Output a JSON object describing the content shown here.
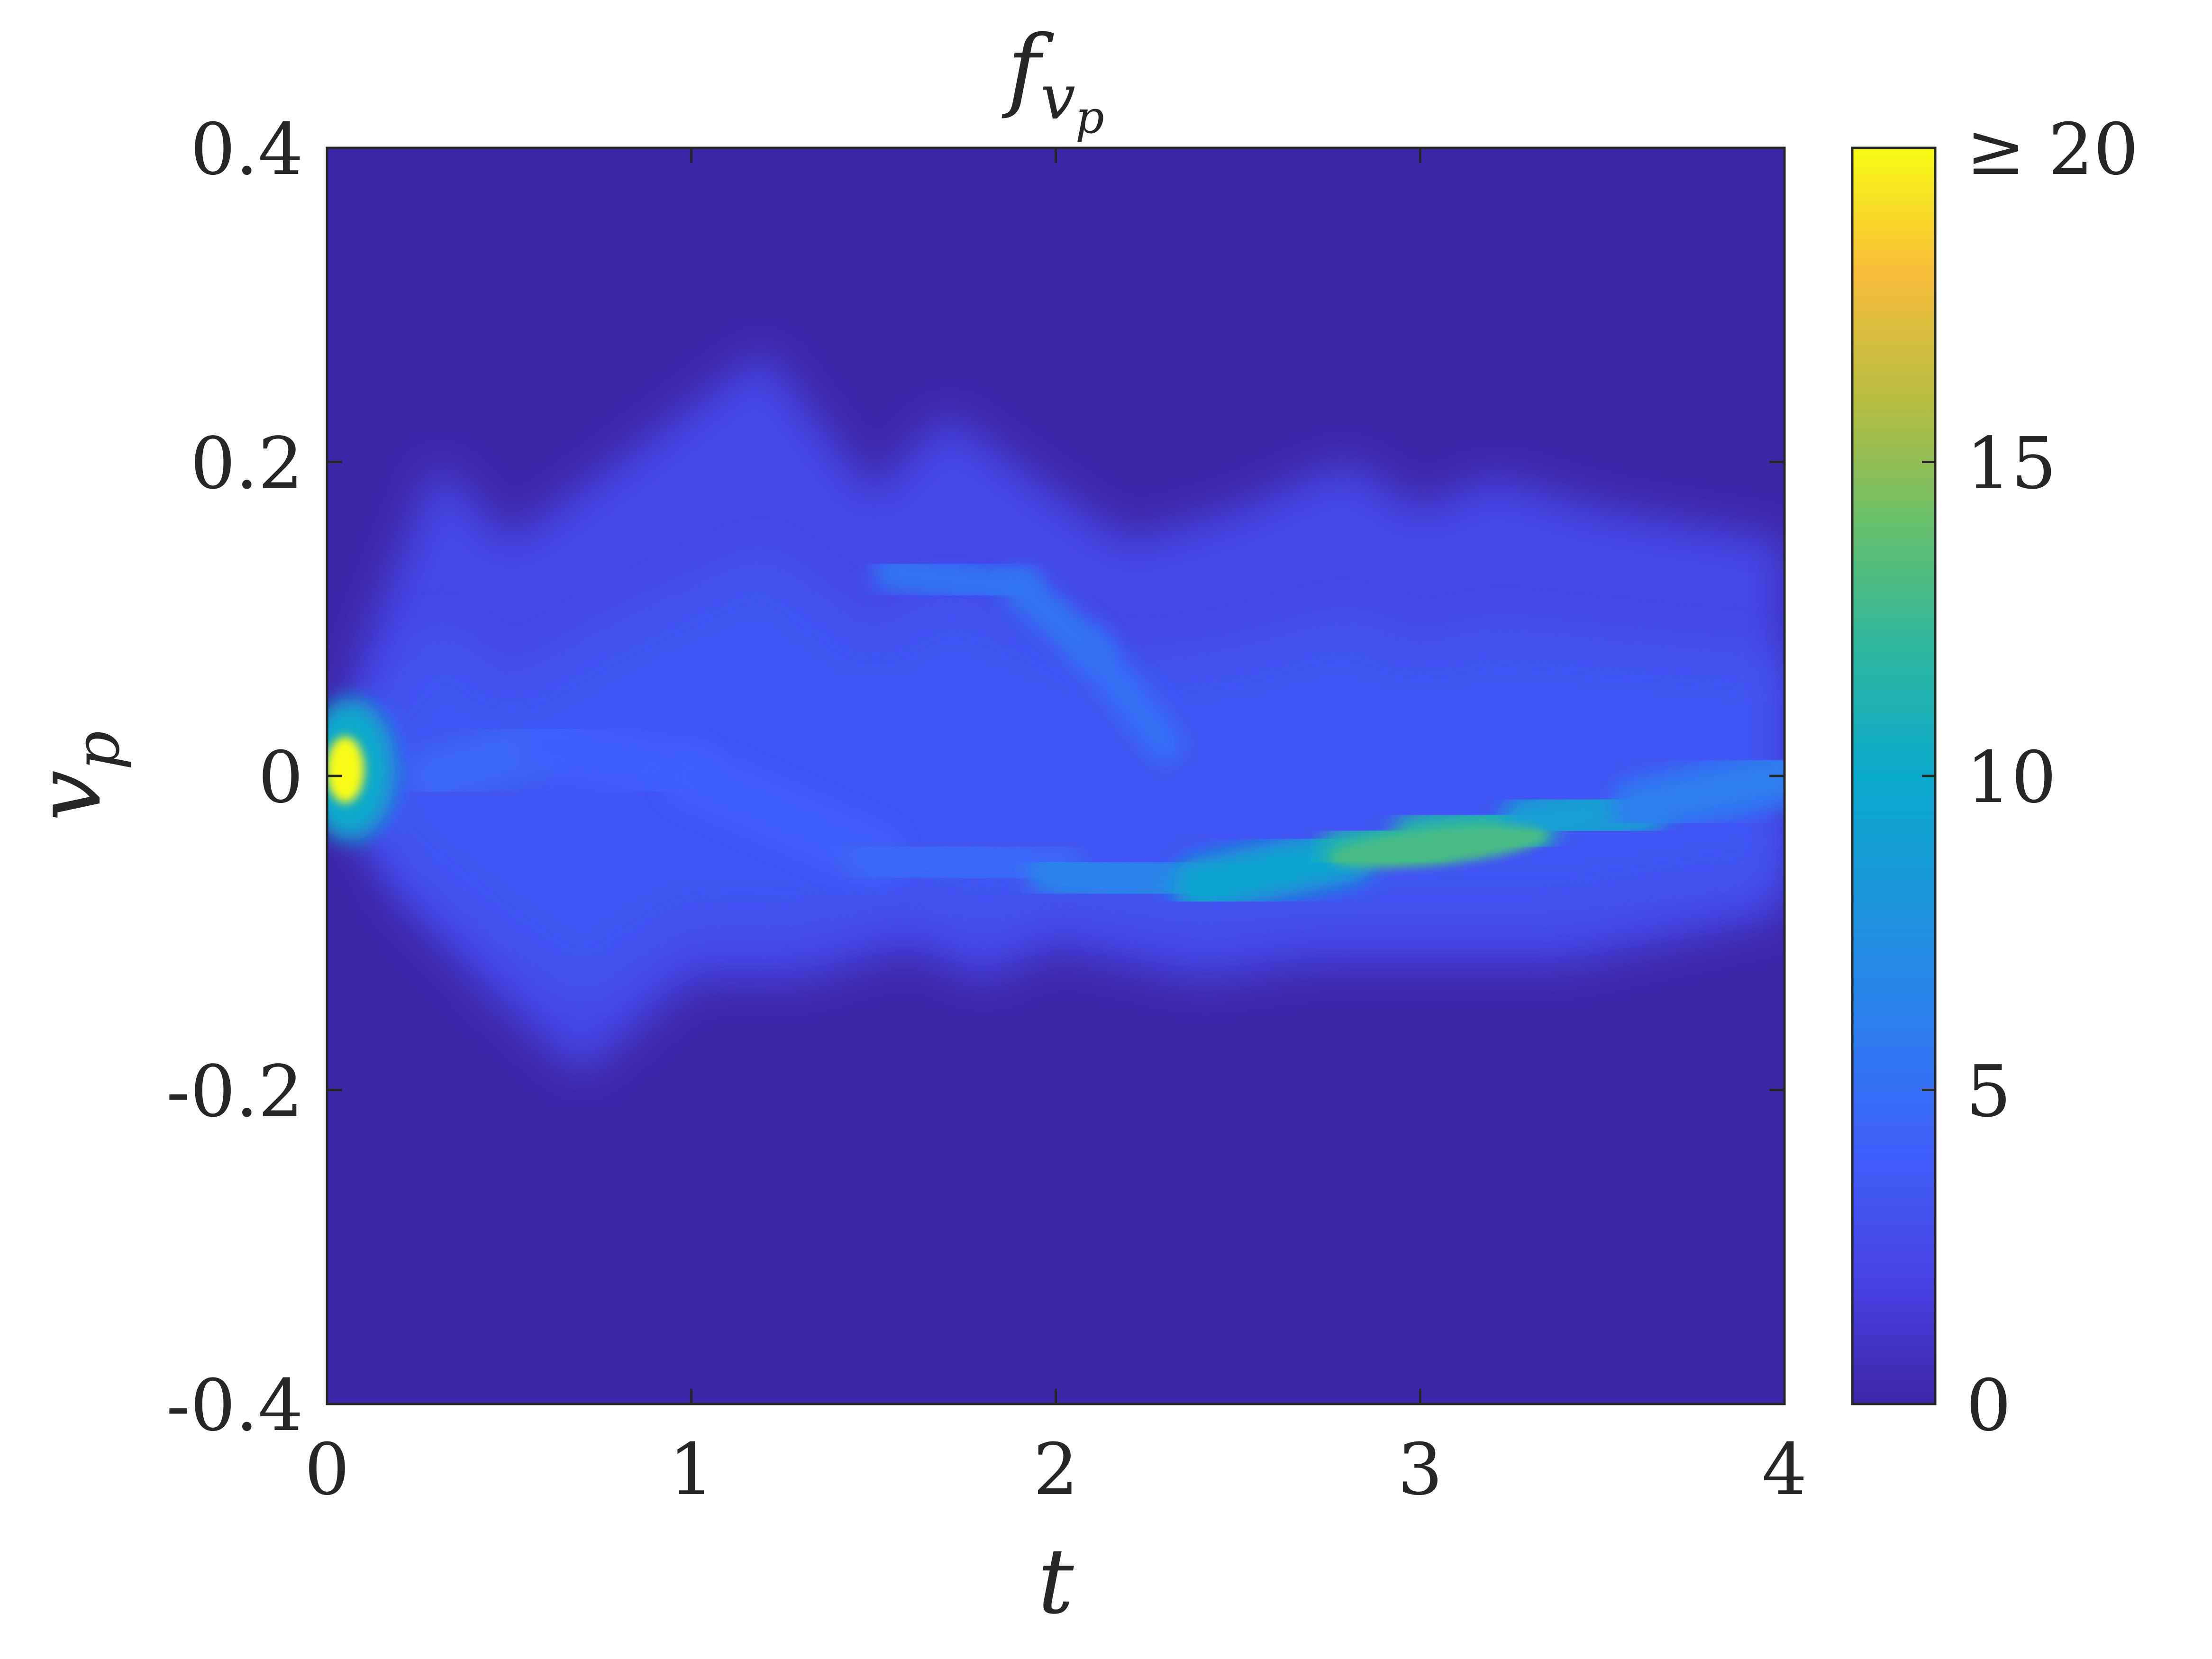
{
  "chart_data": {
    "type": "heatmap",
    "title": "f",
    "title_subscript": "v",
    "title_subscript2": "p",
    "xlabel": "t",
    "ylabel": "v",
    "ylabel_subscript": "p",
    "xlim": [
      0,
      4
    ],
    "ylim": [
      -0.4,
      0.4
    ],
    "x_ticks": [
      0,
      1,
      2,
      3,
      4
    ],
    "x_tick_labels": [
      "0",
      "1",
      "2",
      "3",
      "4"
    ],
    "y_ticks": [
      -0.4,
      -0.2,
      0,
      0.2,
      0.4
    ],
    "y_tick_labels": [
      "-0.4",
      "-0.2",
      "0",
      "0.2",
      "0.4"
    ],
    "colorbar": {
      "colormap": "parula",
      "clim": [
        0,
        20
      ],
      "ticks": [
        0,
        5,
        10,
        15,
        20
      ],
      "tick_labels": [
        "0",
        "5",
        "10",
        "15",
        "≥ 20"
      ]
    },
    "upper_envelope": [
      [
        0,
        0
      ],
      [
        0.1,
        0.08
      ],
      [
        0.3,
        0.2
      ],
      [
        0.5,
        0.15
      ],
      [
        0.8,
        0.2
      ],
      [
        1.2,
        0.27
      ],
      [
        1.5,
        0.18
      ],
      [
        1.7,
        0.23
      ],
      [
        2.0,
        0.18
      ],
      [
        2.2,
        0.15
      ],
      [
        2.5,
        0.17
      ],
      [
        2.8,
        0.2
      ],
      [
        3.0,
        0.17
      ],
      [
        3.2,
        0.19
      ],
      [
        3.5,
        0.17
      ],
      [
        4.0,
        0.15
      ]
    ],
    "lower_envelope": [
      [
        0,
        0
      ],
      [
        0.2,
        -0.08
      ],
      [
        0.5,
        -0.15
      ],
      [
        0.7,
        -0.19
      ],
      [
        1.0,
        -0.13
      ],
      [
        1.3,
        -0.13
      ],
      [
        1.6,
        -0.11
      ],
      [
        1.8,
        -0.13
      ],
      [
        2.0,
        -0.11
      ],
      [
        2.2,
        -0.12
      ],
      [
        2.4,
        -0.13
      ],
      [
        2.7,
        -0.12
      ],
      [
        3.0,
        -0.12
      ],
      [
        3.4,
        -0.12
      ],
      [
        4.0,
        -0.09
      ]
    ],
    "ridge": [
      [
        0.05,
        0.01,
        20
      ],
      [
        0.1,
        0.0,
        12
      ],
      [
        0.3,
        0.0,
        5
      ],
      [
        0.6,
        0.02,
        4
      ],
      [
        1.0,
        0.0,
        4
      ],
      [
        1.5,
        -0.05,
        4
      ],
      [
        2.0,
        -0.06,
        5
      ],
      [
        2.4,
        -0.07,
        8
      ],
      [
        2.8,
        -0.05,
        11
      ],
      [
        3.0,
        -0.04,
        12
      ],
      [
        3.3,
        -0.03,
        11
      ],
      [
        3.6,
        -0.02,
        7
      ],
      [
        4.0,
        0.0,
        5
      ]
    ],
    "secondary_ridge": [
      [
        1.55,
        0.13,
        6
      ],
      [
        1.9,
        0.12,
        5
      ],
      [
        2.1,
        0.08,
        6
      ],
      [
        2.3,
        0.02,
        4
      ]
    ]
  }
}
